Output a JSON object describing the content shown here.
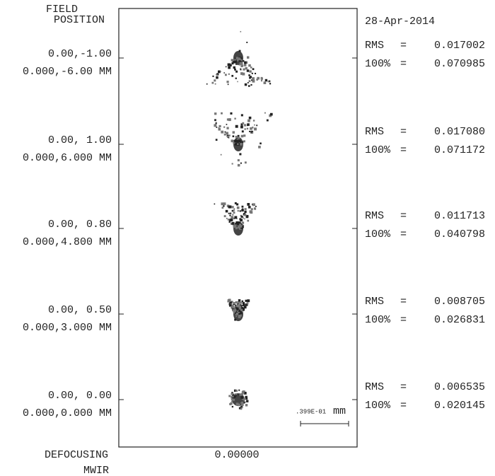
{
  "header": {
    "field_position": [
      "FIELD",
      "POSITION"
    ],
    "date": "28-Apr-2014"
  },
  "fields": [
    {
      "angle": "0.00,-1.00",
      "height": "0.000,-6.00 MM",
      "rms_label": "RMS",
      "eq": "=",
      "rms": "0.017002",
      "full_label": "100%",
      "full": "0.070985"
    },
    {
      "angle": "0.00, 1.00",
      "height": "0.000,6.000 MM",
      "rms_label": "RMS",
      "eq": "=",
      "rms": "0.017080",
      "full_label": "100%",
      "full": "0.071172"
    },
    {
      "angle": "0.00, 0.80",
      "height": "0.000,4.800 MM",
      "rms_label": "RMS",
      "eq": "=",
      "rms": "0.011713",
      "full_label": "100%",
      "full": "0.040798"
    },
    {
      "angle": "0.00, 0.50",
      "height": "0.000,3.000 MM",
      "rms_label": "RMS",
      "eq": "=",
      "rms": "0.008705",
      "full_label": "100%",
      "full": "0.026831"
    },
    {
      "angle": "0.00, 0.00",
      "height": "0.000,0.000 MM",
      "rms_label": "RMS",
      "eq": "=",
      "rms": "0.006535",
      "full_label": "100%",
      "full": "0.020145"
    }
  ],
  "footer": {
    "defocusing": "DEFOCUSING",
    "band": "MWIR",
    "focus": "0.00000",
    "scale": ".399E-01",
    "scale_unit": "mm"
  }
}
